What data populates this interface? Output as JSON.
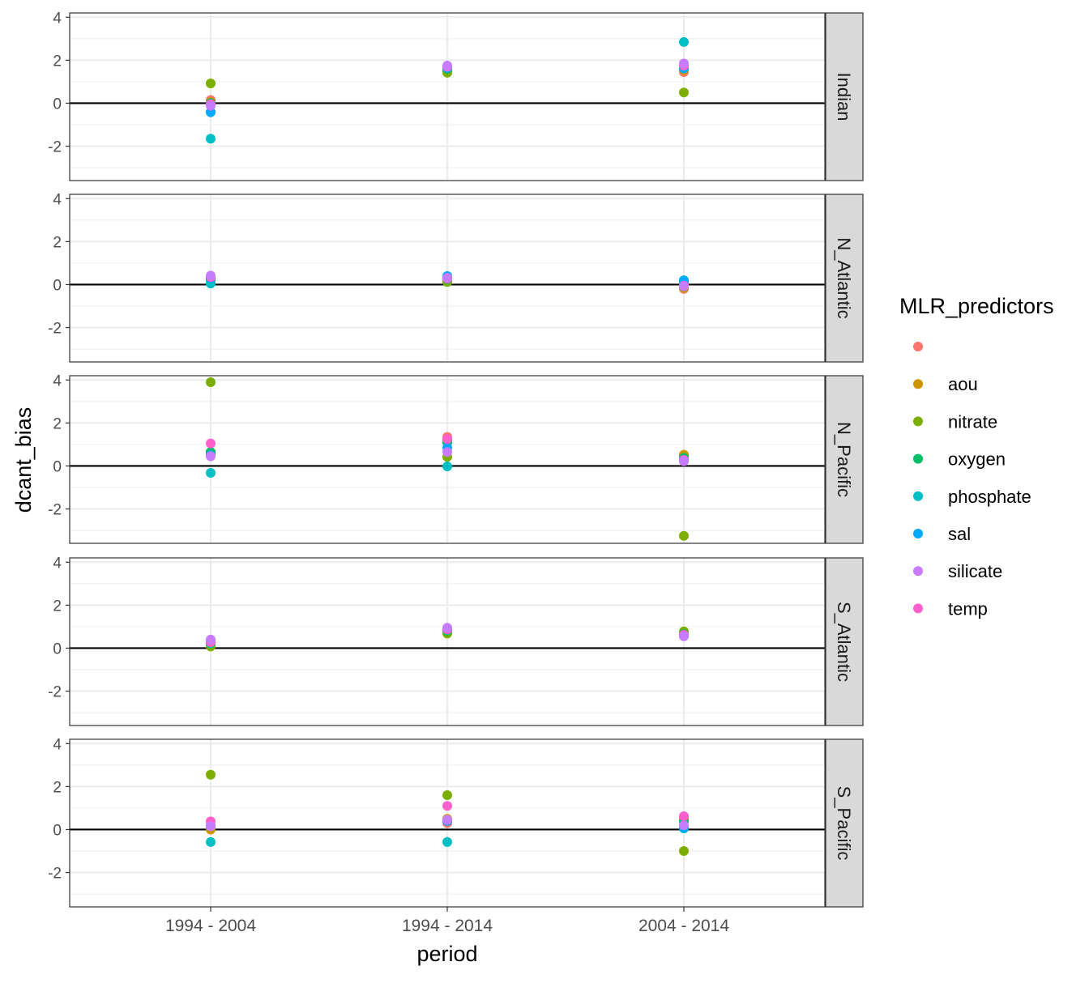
{
  "chart_data": {
    "type": "scatter",
    "xlabel": "period",
    "ylabel": "dcant_bias",
    "x": [
      "1994 - 2004",
      "1994 - 2014",
      "2004 - 2014"
    ],
    "ylim": [
      -3.6,
      4.2
    ],
    "y_ticks": [
      -2,
      0,
      2,
      4
    ],
    "y_tick_labels": [
      "-2",
      "0",
      "2",
      "4"
    ],
    "reference_line_y": 0,
    "grid": true,
    "facet_by": "basin",
    "legend": {
      "title": "MLR_predictors",
      "placement": "right",
      "entries": [
        {
          "label": "",
          "color": "#F8766D"
        },
        {
          "label": "aou",
          "color": "#CD9600"
        },
        {
          "label": "nitrate",
          "color": "#7CAE00"
        },
        {
          "label": "oxygen",
          "color": "#00BE67"
        },
        {
          "label": "phosphate",
          "color": "#00BFC4"
        },
        {
          "label": "sal",
          "color": "#00A9FF"
        },
        {
          "label": "silicate",
          "color": "#C77CFF"
        },
        {
          "label": "temp",
          "color": "#FF61CC"
        }
      ]
    },
    "facets": [
      {
        "label": "Indian",
        "points": [
          {
            "x": "1994 - 2004",
            "series": "",
            "y": 0.15
          },
          {
            "x": "1994 - 2004",
            "series": "aou",
            "y": 0.05
          },
          {
            "x": "1994 - 2004",
            "series": "nitrate",
            "y": 0.92
          },
          {
            "x": "1994 - 2004",
            "series": "oxygen",
            "y": 0.0
          },
          {
            "x": "1994 - 2004",
            "series": "phosphate",
            "y": -1.65
          },
          {
            "x": "1994 - 2004",
            "series": "sal",
            "y": -0.42
          },
          {
            "x": "1994 - 2004",
            "series": "temp",
            "y": -0.05
          },
          {
            "x": "1994 - 2004",
            "series": "silicate",
            "y": -0.12
          },
          {
            "x": "1994 - 2014",
            "series": "",
            "y": 1.55
          },
          {
            "x": "1994 - 2014",
            "series": "aou",
            "y": 1.55
          },
          {
            "x": "1994 - 2014",
            "series": "nitrate",
            "y": 1.42
          },
          {
            "x": "1994 - 2014",
            "series": "oxygen",
            "y": 1.6
          },
          {
            "x": "1994 - 2014",
            "series": "phosphate",
            "y": 1.68
          },
          {
            "x": "1994 - 2014",
            "series": "sal",
            "y": 1.65
          },
          {
            "x": "1994 - 2014",
            "series": "temp",
            "y": 1.7
          },
          {
            "x": "1994 - 2014",
            "series": "silicate",
            "y": 1.75
          },
          {
            "x": "2004 - 2014",
            "series": "",
            "y": 1.45
          },
          {
            "x": "2004 - 2014",
            "series": "aou",
            "y": 1.55
          },
          {
            "x": "2004 - 2014",
            "series": "nitrate",
            "y": 0.5
          },
          {
            "x": "2004 - 2014",
            "series": "oxygen",
            "y": 1.65
          },
          {
            "x": "2004 - 2014",
            "series": "phosphate",
            "y": 2.85
          },
          {
            "x": "2004 - 2014",
            "series": "sal",
            "y": 1.62
          },
          {
            "x": "2004 - 2014",
            "series": "temp",
            "y": 1.75
          },
          {
            "x": "2004 - 2014",
            "series": "silicate",
            "y": 1.85
          }
        ]
      },
      {
        "label": "N_Atlantic",
        "points": [
          {
            "x": "1994 - 2004",
            "series": "",
            "y": 0.25
          },
          {
            "x": "1994 - 2004",
            "series": "aou",
            "y": 0.25
          },
          {
            "x": "1994 - 2004",
            "series": "nitrate",
            "y": 0.2
          },
          {
            "x": "1994 - 2004",
            "series": "oxygen",
            "y": 0.28
          },
          {
            "x": "1994 - 2004",
            "series": "phosphate",
            "y": 0.05
          },
          {
            "x": "1994 - 2004",
            "series": "sal",
            "y": 0.3
          },
          {
            "x": "1994 - 2004",
            "series": "temp",
            "y": 0.35
          },
          {
            "x": "1994 - 2004",
            "series": "silicate",
            "y": 0.42
          },
          {
            "x": "1994 - 2014",
            "series": "",
            "y": 0.22
          },
          {
            "x": "1994 - 2014",
            "series": "aou",
            "y": 0.2
          },
          {
            "x": "1994 - 2014",
            "series": "nitrate",
            "y": 0.12
          },
          {
            "x": "1994 - 2014",
            "series": "oxygen",
            "y": 0.25
          },
          {
            "x": "1994 - 2014",
            "series": "phosphate",
            "y": 0.3
          },
          {
            "x": "1994 - 2014",
            "series": "sal",
            "y": 0.4
          },
          {
            "x": "1994 - 2014",
            "series": "temp",
            "y": 0.28
          },
          {
            "x": "1994 - 2014",
            "series": "silicate",
            "y": 0.32
          },
          {
            "x": "2004 - 2014",
            "series": "",
            "y": -0.2
          },
          {
            "x": "2004 - 2014",
            "series": "aou",
            "y": -0.15
          },
          {
            "x": "2004 - 2014",
            "series": "nitrate",
            "y": -0.1
          },
          {
            "x": "2004 - 2014",
            "series": "oxygen",
            "y": 0.05
          },
          {
            "x": "2004 - 2014",
            "series": "phosphate",
            "y": 0.15
          },
          {
            "x": "2004 - 2014",
            "series": "sal",
            "y": 0.2
          },
          {
            "x": "2004 - 2014",
            "series": "temp",
            "y": -0.05
          },
          {
            "x": "2004 - 2014",
            "series": "silicate",
            "y": -0.08
          }
        ]
      },
      {
        "label": "N_Pacific",
        "points": [
          {
            "x": "1994 - 2004",
            "series": "",
            "y": 0.6
          },
          {
            "x": "1994 - 2004",
            "series": "aou",
            "y": 0.55
          },
          {
            "x": "1994 - 2004",
            "series": "nitrate",
            "y": 3.9
          },
          {
            "x": "1994 - 2004",
            "series": "oxygen",
            "y": 0.65
          },
          {
            "x": "1994 - 2004",
            "series": "phosphate",
            "y": -0.32
          },
          {
            "x": "1994 - 2004",
            "series": "sal",
            "y": 0.5
          },
          {
            "x": "1994 - 2004",
            "series": "temp",
            "y": 1.05
          },
          {
            "x": "1994 - 2004",
            "series": "silicate",
            "y": 0.45
          },
          {
            "x": "1994 - 2014",
            "series": "",
            "y": 1.35
          },
          {
            "x": "1994 - 2014",
            "series": "aou",
            "y": 1.2
          },
          {
            "x": "1994 - 2014",
            "series": "nitrate",
            "y": 0.42
          },
          {
            "x": "1994 - 2014",
            "series": "oxygen",
            "y": 1.1
          },
          {
            "x": "1994 - 2014",
            "series": "phosphate",
            "y": -0.02
          },
          {
            "x": "1994 - 2014",
            "series": "sal",
            "y": 0.85
          },
          {
            "x": "1994 - 2014",
            "series": "temp",
            "y": 1.25
          },
          {
            "x": "1994 - 2014",
            "series": "silicate",
            "y": 0.65
          },
          {
            "x": "2004 - 2014",
            "series": "",
            "y": 0.45
          },
          {
            "x": "2004 - 2014",
            "series": "aou",
            "y": 0.52
          },
          {
            "x": "2004 - 2014",
            "series": "nitrate",
            "y": -3.25
          },
          {
            "x": "2004 - 2014",
            "series": "oxygen",
            "y": 0.38
          },
          {
            "x": "2004 - 2014",
            "series": "phosphate",
            "y": 0.3
          },
          {
            "x": "2004 - 2014",
            "series": "sal",
            "y": 0.25
          },
          {
            "x": "2004 - 2014",
            "series": "temp",
            "y": 0.28
          },
          {
            "x": "2004 - 2014",
            "series": "silicate",
            "y": 0.22
          }
        ]
      },
      {
        "label": "S_Atlantic",
        "points": [
          {
            "x": "1994 - 2004",
            "series": "",
            "y": 0.2
          },
          {
            "x": "1994 - 2004",
            "series": "aou",
            "y": 0.15
          },
          {
            "x": "1994 - 2004",
            "series": "nitrate",
            "y": 0.08
          },
          {
            "x": "1994 - 2004",
            "series": "oxygen",
            "y": 0.22
          },
          {
            "x": "1994 - 2004",
            "series": "phosphate",
            "y": 0.25
          },
          {
            "x": "1994 - 2004",
            "series": "sal",
            "y": 0.3
          },
          {
            "x": "1994 - 2004",
            "series": "temp",
            "y": 0.28
          },
          {
            "x": "1994 - 2004",
            "series": "silicate",
            "y": 0.4
          },
          {
            "x": "1994 - 2014",
            "series": "",
            "y": 0.8
          },
          {
            "x": "1994 - 2014",
            "series": "aou",
            "y": 0.75
          },
          {
            "x": "1994 - 2014",
            "series": "nitrate",
            "y": 0.68
          },
          {
            "x": "1994 - 2014",
            "series": "oxygen",
            "y": 0.82
          },
          {
            "x": "1994 - 2014",
            "series": "phosphate",
            "y": 0.85
          },
          {
            "x": "1994 - 2014",
            "series": "sal",
            "y": 0.9
          },
          {
            "x": "1994 - 2014",
            "series": "temp",
            "y": 0.88
          },
          {
            "x": "1994 - 2014",
            "series": "silicate",
            "y": 0.95
          },
          {
            "x": "2004 - 2014",
            "series": "",
            "y": 0.6
          },
          {
            "x": "2004 - 2014",
            "series": "aou",
            "y": 0.62
          },
          {
            "x": "2004 - 2014",
            "series": "nitrate",
            "y": 0.78
          },
          {
            "x": "2004 - 2014",
            "series": "oxygen",
            "y": 0.65
          },
          {
            "x": "2004 - 2014",
            "series": "phosphate",
            "y": 0.58
          },
          {
            "x": "2004 - 2014",
            "series": "sal",
            "y": 0.6
          },
          {
            "x": "2004 - 2014",
            "series": "temp",
            "y": 0.62
          },
          {
            "x": "2004 - 2014",
            "series": "silicate",
            "y": 0.55
          }
        ]
      },
      {
        "label": "S_Pacific",
        "points": [
          {
            "x": "1994 - 2004",
            "series": "",
            "y": 0.1
          },
          {
            "x": "1994 - 2004",
            "series": "aou",
            "y": 0.0
          },
          {
            "x": "1994 - 2004",
            "series": "nitrate",
            "y": 2.55
          },
          {
            "x": "1994 - 2004",
            "series": "oxygen",
            "y": 0.15
          },
          {
            "x": "1994 - 2004",
            "series": "phosphate",
            "y": -0.58
          },
          {
            "x": "1994 - 2004",
            "series": "sal",
            "y": 0.2
          },
          {
            "x": "1994 - 2004",
            "series": "temp",
            "y": 0.38
          },
          {
            "x": "1994 - 2004",
            "series": "silicate",
            "y": 0.15
          },
          {
            "x": "1994 - 2014",
            "series": "",
            "y": 0.3
          },
          {
            "x": "1994 - 2014",
            "series": "aou",
            "y": 0.5
          },
          {
            "x": "1994 - 2014",
            "series": "nitrate",
            "y": 1.6
          },
          {
            "x": "1994 - 2014",
            "series": "oxygen",
            "y": 0.42
          },
          {
            "x": "1994 - 2014",
            "series": "phosphate",
            "y": -0.58
          },
          {
            "x": "1994 - 2014",
            "series": "sal",
            "y": 0.4
          },
          {
            "x": "1994 - 2014",
            "series": "temp",
            "y": 1.1
          },
          {
            "x": "1994 - 2014",
            "series": "silicate",
            "y": 0.45
          },
          {
            "x": "2004 - 2014",
            "series": "",
            "y": 0.55
          },
          {
            "x": "2004 - 2014",
            "series": "aou",
            "y": 0.45
          },
          {
            "x": "2004 - 2014",
            "series": "nitrate",
            "y": -1.0
          },
          {
            "x": "2004 - 2014",
            "series": "oxygen",
            "y": 0.35
          },
          {
            "x": "2004 - 2014",
            "series": "phosphate",
            "y": 0.05
          },
          {
            "x": "2004 - 2014",
            "series": "sal",
            "y": 0.1
          },
          {
            "x": "2004 - 2014",
            "series": "temp",
            "y": 0.62
          },
          {
            "x": "2004 - 2014",
            "series": "silicate",
            "y": 0.2
          }
        ]
      }
    ]
  }
}
